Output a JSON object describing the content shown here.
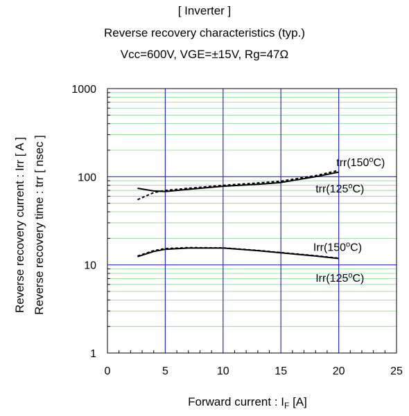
{
  "chart_data": {
    "type": "line",
    "title": "[ Inverter ]",
    "subtitle": "Reverse recovery characteristics  (typ.)",
    "conditions": "Vcc=600V,  VGE=±15V,  Rg=47Ω",
    "xlabel": {
      "main": "Forward current : I",
      "sub": "F",
      "tail": " [A]"
    },
    "ylabel": [
      "Reverse recovery current  :  Irr  [ A ]",
      "Reverse recovery time  :  trr  [ nsec ]"
    ],
    "xlim": [
      0,
      25
    ],
    "ylim": [
      1,
      1000
    ],
    "yscale": "log",
    "xticks": [
      "0",
      "5",
      "10",
      "15",
      "20",
      "25"
    ],
    "yticks": [
      "1",
      "10",
      "100",
      "1000"
    ],
    "grid": true,
    "series": [
      {
        "label_main": "trr(150",
        "sup": "o",
        "label_tail": "C)",
        "style": "dashed",
        "x": [
          2.6,
          4,
          5,
          7,
          10,
          13,
          15,
          18,
          20
        ],
        "y": [
          55,
          66,
          70,
          74,
          80,
          85,
          89,
          103,
          118
        ]
      },
      {
        "label_main": "trr(125",
        "sup": "o",
        "label_tail": "C)",
        "style": "solid",
        "x": [
          2.6,
          4,
          5,
          7,
          10,
          13,
          15,
          18,
          20
        ],
        "y": [
          74,
          69,
          68,
          72,
          78,
          82,
          86,
          100,
          113
        ]
      },
      {
        "label_main": "Irr(150",
        "sup": "o",
        "label_tail": "C)",
        "style": "dashed",
        "x": [
          2.6,
          4,
          5,
          7,
          10,
          13,
          15,
          18,
          20
        ],
        "y": [
          12.6,
          14.5,
          15.3,
          15.7,
          15.6,
          14.6,
          13.8,
          12.7,
          11.9
        ]
      },
      {
        "label_main": "Irr(125",
        "sup": "o",
        "label_tail": "C)",
        "style": "solid",
        "x": [
          2.6,
          4,
          5,
          7,
          10,
          13,
          15,
          18,
          20
        ],
        "y": [
          12.4,
          14.2,
          15.0,
          15.5,
          15.5,
          14.5,
          13.7,
          12.6,
          11.8
        ]
      }
    ]
  }
}
